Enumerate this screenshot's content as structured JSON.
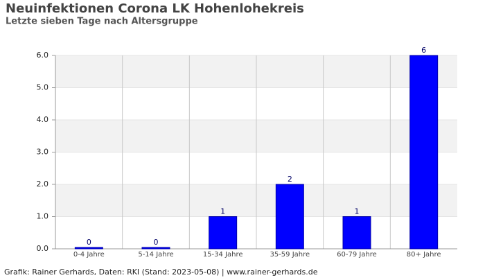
{
  "chart_data": {
    "type": "bar",
    "title": "Neuinfektionen Corona LK Hohenlohekreis",
    "subtitle": "Letzte sieben Tage nach Altersgruppe",
    "footer": "Grafik: Rainer Gerhards, Daten: RKI (Stand: 2023-05-08) | www.rainer-gerhards.de",
    "categories": [
      "0-4 Jahre",
      "5-14 Jahre",
      "15-34 Jahre",
      "35-59 Jahre",
      "60-79 Jahre",
      "80+ Jahre"
    ],
    "values": [
      0,
      0,
      1,
      2,
      1,
      6
    ],
    "color": "#0000ff",
    "ylim": [
      0,
      6
    ],
    "yticks": [
      {
        "value": 0,
        "label": "0.0"
      },
      {
        "value": 1,
        "label": "1.0"
      },
      {
        "value": 2,
        "label": "2.0"
      },
      {
        "value": 3,
        "label": "3.0"
      },
      {
        "value": 4,
        "label": "4.0"
      },
      {
        "value": 5,
        "label": "5.0"
      },
      {
        "value": 6,
        "label": "6.0"
      }
    ],
    "grid": true
  }
}
